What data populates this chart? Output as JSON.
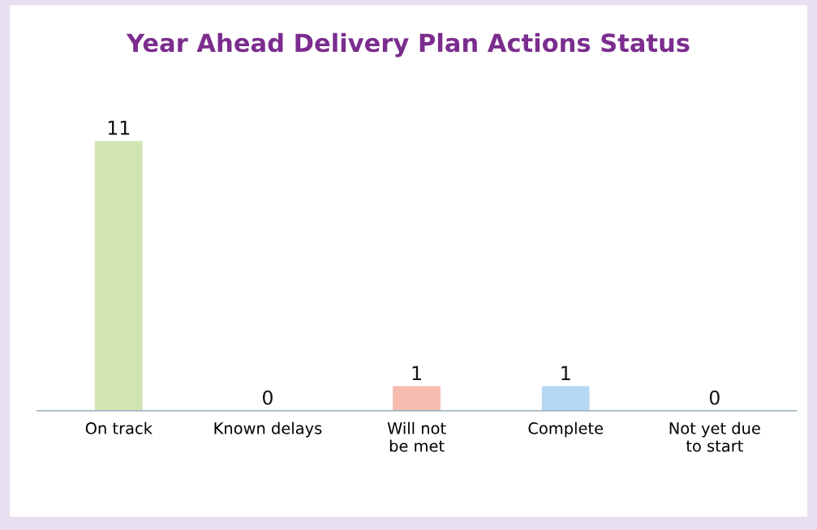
{
  "chart_data": {
    "type": "bar",
    "title": "Year Ahead Delivery Plan Actions Status",
    "categories": [
      "On track",
      "Known delays",
      "Will not\nbe met",
      "Complete",
      "Not yet due\nto start"
    ],
    "values": [
      11,
      0,
      1,
      1,
      0
    ],
    "colors": [
      "#d3e4b3",
      "#d9d9d9",
      "#f7bcaf",
      "#b7d8f2",
      "#d9d9d9"
    ],
    "data_labels": true,
    "grid": false,
    "legend": false
  }
}
